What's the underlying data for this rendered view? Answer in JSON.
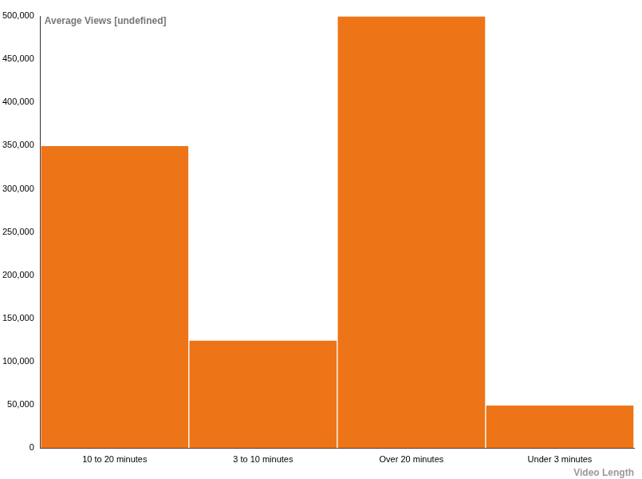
{
  "chart_data": {
    "type": "bar",
    "y_label": "Average Views [undefined]",
    "x_label": "Video Length",
    "categories": [
      "10 to 20 minutes",
      "3 to 10 minutes",
      "Over 20 minutes",
      "Under 3 minutes"
    ],
    "values": [
      350000,
      125000,
      500000,
      50000
    ],
    "color": "#ed7517",
    "ylim": [
      0,
      500000
    ],
    "yticks": [
      0,
      {
        "value": 50000,
        "label": "50,000"
      },
      {
        "value": 100000,
        "label": "100,000"
      },
      {
        "value": 150000,
        "label": "150,000"
      },
      {
        "value": 200000,
        "label": "200,000"
      },
      {
        "value": 250000,
        "label": "250,000"
      },
      {
        "value": 300000,
        "label": "300,000"
      },
      {
        "value": 350000,
        "label": "350,000"
      },
      {
        "value": 400000,
        "label": "400,000"
      },
      {
        "value": 450000,
        "label": "450,000"
      },
      {
        "value": 500000,
        "label": "500,000"
      }
    ],
    "grid": false
  }
}
